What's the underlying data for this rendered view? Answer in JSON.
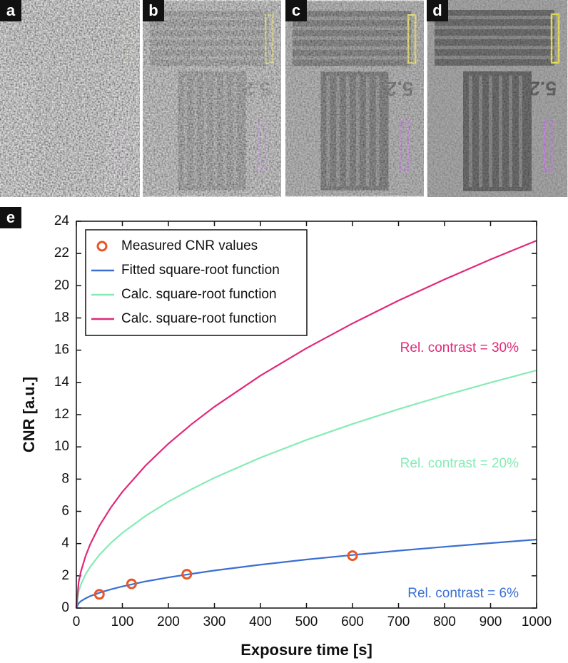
{
  "panels": [
    {
      "label": "a"
    },
    {
      "label": "b"
    },
    {
      "label": "c"
    },
    {
      "label": "d"
    }
  ],
  "chart_data": {
    "type": "line",
    "label": "e",
    "xlabel": "Exposure time [s]",
    "ylabel": "CNR [a.u.]",
    "xlim": [
      0,
      1000
    ],
    "ylim": [
      0,
      24
    ],
    "xticks": [
      0,
      100,
      200,
      300,
      400,
      500,
      600,
      700,
      800,
      900,
      1000
    ],
    "yticks": [
      0,
      2,
      4,
      6,
      8,
      10,
      12,
      14,
      16,
      18,
      20,
      22,
      24
    ],
    "legend": "upper left",
    "series": [
      {
        "name": "Measured CNR values",
        "color": "#e8562a",
        "marker": "circle",
        "x": [
          50,
          120,
          240,
          600
        ],
        "values": [
          0.85,
          1.5,
          2.1,
          3.25
        ]
      },
      {
        "name": "Fitted square-root function",
        "color": "#3a6fd1",
        "x": [
          0,
          5,
          10,
          20,
          30,
          50,
          75,
          100,
          150,
          200,
          250,
          300,
          400,
          500,
          600,
          700,
          800,
          900,
          1000
        ],
        "values": [
          0,
          0.3,
          0.43,
          0.6,
          0.74,
          0.95,
          1.16,
          1.34,
          1.65,
          1.9,
          2.12,
          2.33,
          2.69,
          3.01,
          3.29,
          3.56,
          3.8,
          4.03,
          4.25
        ]
      },
      {
        "name": "Calc. square-root function",
        "color": "#86ebb6",
        "x": [
          0,
          5,
          10,
          20,
          30,
          50,
          75,
          100,
          150,
          200,
          250,
          300,
          400,
          500,
          600,
          700,
          800,
          900,
          1000
        ],
        "values": [
          0,
          1.04,
          1.47,
          2.09,
          2.55,
          3.3,
          4.04,
          4.66,
          5.71,
          6.6,
          7.37,
          8.08,
          9.33,
          10.43,
          11.42,
          12.34,
          13.19,
          13.99,
          14.75
        ]
      },
      {
        "name": "Calc. square-root function",
        "color": "#e0297a",
        "x": [
          0,
          5,
          10,
          20,
          30,
          50,
          75,
          100,
          150,
          200,
          250,
          300,
          400,
          500,
          600,
          700,
          800,
          900,
          1000
        ],
        "values": [
          0,
          1.61,
          2.28,
          3.22,
          3.95,
          5.1,
          6.24,
          7.21,
          8.83,
          10.2,
          11.4,
          12.49,
          14.42,
          16.12,
          17.66,
          19.08,
          20.39,
          21.63,
          22.8
        ]
      }
    ],
    "annotations": [
      {
        "text": "Rel. contrast = 30%",
        "color": "#e0297a"
      },
      {
        "text": "Rel. contrast = 20%",
        "color": "#86ebb6"
      },
      {
        "text": "Rel. contrast = 6%",
        "color": "#3a6fd1"
      }
    ]
  }
}
